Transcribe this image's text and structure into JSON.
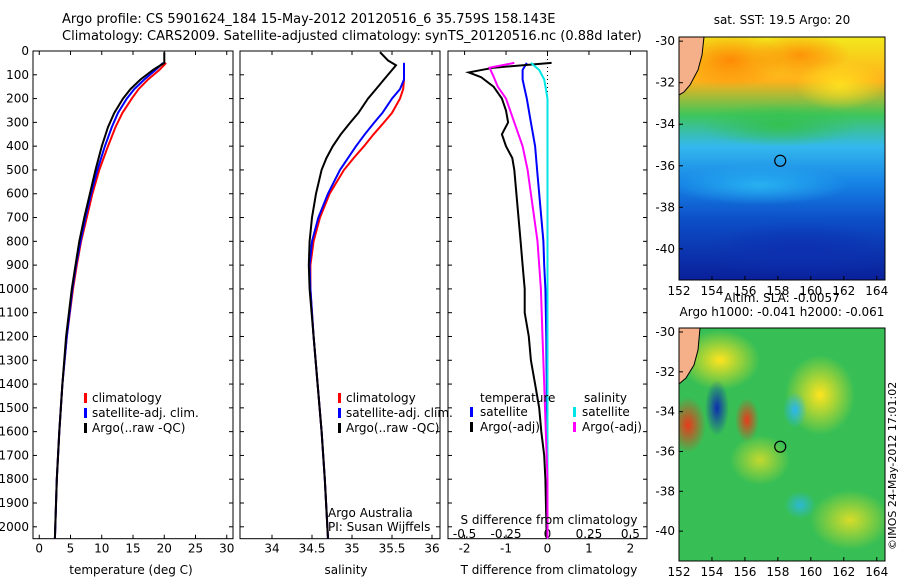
{
  "title": {
    "line1": "Argo profile: CS 5901624_184 15-May-2012 20120516_6 35.759S 158.143E",
    "line2": "Climatology: CARS2009. Satellite-adjusted climatology: synTS_20120516.nc (0.88d later)"
  },
  "depth_ticks": [
    0,
    100,
    200,
    300,
    400,
    500,
    600,
    700,
    800,
    900,
    1000,
    1100,
    1200,
    1300,
    1400,
    1500,
    1600,
    1700,
    1800,
    1900,
    2000
  ],
  "colors": {
    "climatology": "#ff0000",
    "satellite": "#0000ff",
    "argo": "#000000",
    "sat_salinity": "#00e5e5",
    "argo_salinity": "#ff00ff"
  },
  "chart_data": [
    {
      "type": "line",
      "id": "temperature",
      "xlabel": "temperature (deg C)",
      "xlim": [
        -1,
        31
      ],
      "ylim": [
        2050,
        0
      ],
      "xticks": [
        0,
        5,
        10,
        15,
        20,
        25,
        30
      ],
      "legend": [
        "climatology",
        "satellite-adj. clim.",
        "Argo(..raw -QC)"
      ],
      "series": [
        {
          "name": "climatology",
          "depth": [
            50,
            80,
            120,
            160,
            200,
            260,
            320,
            400,
            500,
            600,
            700,
            800,
            900,
            1000,
            1200,
            1400,
            1600,
            1800,
            2050
          ],
          "values": [
            20.3,
            19.2,
            17.4,
            15.9,
            14.8,
            13.3,
            12.2,
            11.0,
            9.6,
            8.5,
            7.6,
            6.7,
            6.0,
            5.4,
            4.4,
            3.7,
            3.2,
            2.8,
            2.5
          ]
        },
        {
          "name": "satellite-adj. clim.",
          "depth": [
            50,
            80,
            120,
            160,
            200,
            260,
            320,
            400,
            500,
            600,
            700,
            800,
            900,
            1000,
            1200,
            1400,
            1600,
            1800,
            2050
          ],
          "values": [
            19.8,
            18.6,
            16.8,
            15.2,
            14.0,
            12.6,
            11.6,
            10.5,
            9.3,
            8.3,
            7.4,
            6.6,
            5.9,
            5.3,
            4.4,
            3.7,
            3.2,
            2.8,
            2.5
          ]
        },
        {
          "name": "Argo(..raw -QC)",
          "depth": [
            5,
            50,
            80,
            120,
            160,
            200,
            260,
            320,
            400,
            500,
            600,
            700,
            800,
            900,
            1000,
            1200,
            1400,
            1600,
            1800,
            2050
          ],
          "values": [
            20.0,
            20.0,
            18.2,
            16.2,
            14.6,
            13.4,
            12.0,
            11.0,
            10.0,
            9.0,
            8.1,
            7.2,
            6.4,
            5.8,
            5.2,
            4.3,
            3.7,
            3.2,
            2.8,
            2.5
          ]
        }
      ]
    },
    {
      "type": "line",
      "id": "salinity",
      "xlabel": "salinity",
      "xlim": [
        33.6,
        36.1
      ],
      "ylim": [
        2050,
        0
      ],
      "xticks": [
        34,
        34.5,
        35,
        35.5,
        36
      ],
      "legend": [
        "climatology",
        "satellite-adj. clim.",
        "Argo(..raw -QC)"
      ],
      "annotation": [
        "Argo Australia",
        "PI: Susan Wijffels"
      ],
      "series": [
        {
          "name": "climatology",
          "depth": [
            50,
            80,
            120,
            160,
            200,
            260,
            300,
            350,
            400,
            450,
            500,
            600,
            700,
            800,
            900,
            1000,
            1200,
            1400,
            1600,
            1800,
            2050
          ],
          "values": [
            35.65,
            35.65,
            35.65,
            35.64,
            35.6,
            35.5,
            35.4,
            35.27,
            35.15,
            35.02,
            34.9,
            34.72,
            34.6,
            34.52,
            34.48,
            34.48,
            34.52,
            34.57,
            34.62,
            34.66,
            34.7
          ]
        },
        {
          "name": "satellite-adj. clim.",
          "depth": [
            50,
            80,
            120,
            160,
            200,
            260,
            300,
            350,
            400,
            450,
            500,
            600,
            700,
            800,
            900,
            1000,
            1200,
            1400,
            1600,
            1800,
            2050
          ],
          "values": [
            35.65,
            35.65,
            35.65,
            35.6,
            35.5,
            35.38,
            35.28,
            35.16,
            35.05,
            34.95,
            34.85,
            34.7,
            34.58,
            34.5,
            34.47,
            34.48,
            34.52,
            34.57,
            34.62,
            34.66,
            34.7
          ]
        },
        {
          "name": "Argo(..raw -QC)",
          "depth": [
            5,
            40,
            60,
            80,
            120,
            160,
            200,
            260,
            300,
            350,
            400,
            450,
            500,
            600,
            700,
            800,
            900,
            1000,
            1200,
            1400,
            1600,
            1800,
            2050
          ],
          "values": [
            35.35,
            35.45,
            35.55,
            35.5,
            35.4,
            35.3,
            35.2,
            35.08,
            34.98,
            34.86,
            34.76,
            34.68,
            34.62,
            34.55,
            34.5,
            34.47,
            34.46,
            34.47,
            34.52,
            34.57,
            34.62,
            34.66,
            34.7
          ]
        }
      ]
    },
    {
      "type": "line",
      "id": "difference",
      "xlabel": "T difference from climatology",
      "s_axis_label": "S difference from climatology",
      "xlim": [
        -2.4,
        2.4
      ],
      "ylim": [
        2050,
        0
      ],
      "xticks": [
        -2,
        -1,
        0,
        1,
        2
      ],
      "s_ticks": [
        "-0.5",
        "-0.25",
        "0",
        "0.25",
        "0.5"
      ],
      "legend_headers": [
        "temperature",
        "salinity"
      ],
      "legend": [
        "satellite",
        "Argo(-adj)",
        "satellite",
        "Argo(-adj)"
      ],
      "series": [
        {
          "name": "satellite",
          "depth": [
            50,
            80,
            120,
            160,
            200,
            300,
            400,
            500,
            600,
            700,
            800,
            900,
            1000,
            1200,
            1400,
            1600,
            1800,
            2050
          ],
          "values": [
            -0.5,
            -0.6,
            -0.6,
            -0.55,
            -0.5,
            -0.4,
            -0.3,
            -0.25,
            -0.2,
            -0.15,
            -0.1,
            -0.08,
            -0.05,
            -0.03,
            -0.02,
            -0.01,
            0,
            0
          ]
        },
        {
          "name": "Argo(-adj)",
          "depth": [
            50,
            70,
            90,
            110,
            150,
            200,
            250,
            300,
            350,
            400,
            450,
            500,
            600,
            700,
            800,
            900,
            1000,
            1100,
            1200,
            1300,
            1400,
            1500,
            1600,
            1700,
            1800,
            2050
          ],
          "values": [
            0.1,
            -1.3,
            -1.9,
            -1.6,
            -1.3,
            -1.1,
            -1.0,
            -0.95,
            -1.1,
            -1.0,
            -0.85,
            -0.8,
            -0.75,
            -0.7,
            -0.65,
            -0.6,
            -0.55,
            -0.55,
            -0.45,
            -0.4,
            -0.3,
            -0.2,
            -0.15,
            -0.08,
            -0.05,
            -0.02
          ]
        },
        {
          "name": "satellite",
          "depth": [
            50,
            80,
            120,
            200,
            300,
            400,
            500,
            600,
            700,
            800,
            900,
            1000,
            1200,
            1400,
            1600,
            1800,
            2050
          ],
          "values": [
            -0.1,
            -0.05,
            -0.02,
            0,
            0,
            0,
            0,
            0,
            0,
            0,
            0,
            0,
            0,
            0,
            0,
            0,
            0
          ]
        },
        {
          "name": "Argo(-adj)",
          "depth": [
            50,
            70,
            100,
            150,
            200,
            300,
            400,
            500,
            600,
            700,
            800,
            900,
            1000,
            1200,
            1400,
            1600,
            1800,
            2050
          ],
          "values": [
            -0.2,
            -0.35,
            -0.33,
            -0.3,
            -0.25,
            -0.2,
            -0.15,
            -0.12,
            -0.1,
            -0.08,
            -0.06,
            -0.05,
            -0.04,
            -0.03,
            -0.02,
            -0.01,
            0,
            0
          ]
        }
      ]
    },
    {
      "type": "heatmap",
      "id": "sst-map",
      "title": "sat. SST: 19.5 Argo: 20",
      "xlim": [
        152,
        164.5
      ],
      "ylim": [
        -41.5,
        -29.8
      ],
      "xticks": [
        152,
        154,
        156,
        158,
        160,
        162,
        164
      ],
      "yticks": [
        -30,
        -32,
        -34,
        -36,
        -38,
        -40
      ],
      "marker": {
        "lon": 158.143,
        "lat": -35.759
      }
    },
    {
      "type": "heatmap",
      "id": "sla-map",
      "title": "Altim. SLA: -0.0057",
      "subtitle": "Argo h1000: -0.041 h2000: -0.061",
      "xlim": [
        152,
        164.5
      ],
      "ylim": [
        -41.5,
        -29.8
      ],
      "xticks": [
        152,
        154,
        156,
        158,
        160,
        162,
        164
      ],
      "yticks": [
        -30,
        -32,
        -34,
        -36,
        -38,
        -40
      ],
      "marker": {
        "lon": 158.143,
        "lat": -35.759
      }
    }
  ],
  "footer_stamp": "©IMOS 24-May-2012 17:01:02"
}
